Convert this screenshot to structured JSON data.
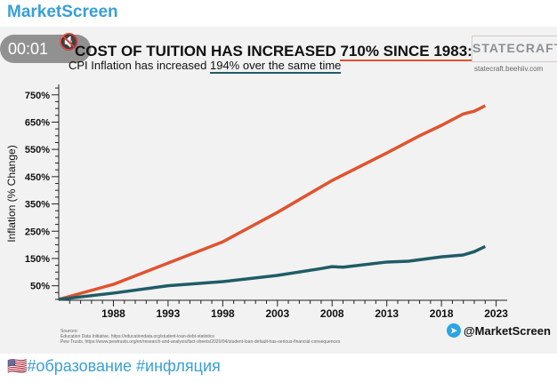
{
  "channel": {
    "name": "MarketScreen"
  },
  "video": {
    "time": "00:01",
    "mute_icon": "speaker-muted-icon"
  },
  "logo": {
    "text": "STATECRAFT",
    "url": "statecraft.beehiiv.com"
  },
  "watermark": "@MarketScreen",
  "sources": {
    "label": "Sources:",
    "lines": [
      "Education Data Initiative, https://educationdata.org/student-loan-debt-statistics",
      "Pew Trusts, https://www.pewtrusts.org/en/research-and-analysis/fact-sheets/2020/04/student-loan-default-has-serious-financial-consequences"
    ]
  },
  "caption": {
    "flag": "🇺🇸",
    "text": "#образование #инфляция"
  },
  "chart_data": {
    "type": "line",
    "title_pre": "COST OF TUITION HAS INCREASED ",
    "title_hl": "710% SINCE 1983:",
    "subtitle_pre": "CPI Inflation has increased ",
    "subtitle_hl": "194% over the same time",
    "ylabel": "Inflation (% Change)",
    "xlabel": "",
    "xlim": [
      1983,
      2023
    ],
    "ylim": [
      0,
      780
    ],
    "xticks": [
      "1988",
      "1993",
      "1998",
      "2003",
      "2008",
      "2013",
      "2018",
      "2023"
    ],
    "yticks": [
      "50%",
      "150%",
      "250%",
      "350%",
      "450%",
      "550%",
      "650%",
      "750%"
    ],
    "series": [
      {
        "color": "#e0532f",
        "x": [
          1983,
          1988,
          1993,
          1998,
          2003,
          2008,
          2013,
          2016,
          2018,
          2020,
          2021,
          2022
        ],
        "y": [
          0,
          55,
          133,
          211,
          319,
          436,
          537,
          600,
          638,
          680,
          690,
          710
        ]
      },
      {
        "color": "#1f5c66",
        "x": [
          1983,
          1988,
          1993,
          1998,
          2003,
          2007,
          2008,
          2009,
          2013,
          2015,
          2018,
          2020,
          2021,
          2022
        ],
        "y": [
          0,
          23,
          50,
          65,
          88,
          113,
          120,
          118,
          137,
          140,
          156,
          163,
          175,
          194
        ]
      }
    ]
  }
}
